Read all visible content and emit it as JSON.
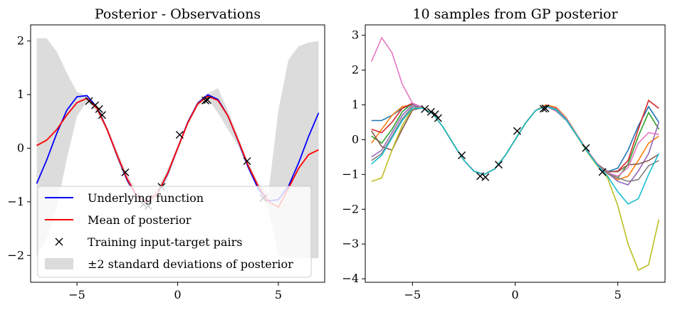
{
  "chart_data": [
    {
      "type": "line",
      "title": "Posterior - Observations",
      "xlim": [
        -7.3,
        7.3
      ],
      "ylim": [
        -2.5,
        2.3
      ],
      "xticks": [
        -5,
        0,
        5
      ],
      "yticks": [
        -2,
        -1,
        0,
        1,
        2
      ],
      "xtick_labels": [
        "−5",
        "0",
        "5"
      ],
      "ytick_labels": [
        "−2",
        "−1",
        "0",
        "1",
        "2"
      ],
      "grid": false,
      "legend_position": "lower-left",
      "x": [
        -7.0,
        -6.5,
        -6.0,
        -5.5,
        -5.0,
        -4.5,
        -4.0,
        -3.5,
        -3.0,
        -2.5,
        -2.0,
        -1.5,
        -1.0,
        -0.5,
        0.0,
        0.5,
        1.0,
        1.5,
        2.0,
        2.5,
        3.0,
        3.5,
        4.0,
        4.5,
        5.0,
        5.5,
        6.0,
        6.5,
        7.0
      ],
      "series": [
        {
          "name": "Underlying function",
          "color": "#0000ff",
          "kind": "line",
          "values": [
            -0.66,
            -0.22,
            0.28,
            0.71,
            0.96,
            0.98,
            0.76,
            0.35,
            -0.14,
            -0.6,
            -0.91,
            -0.997,
            -0.84,
            -0.48,
            0.0,
            0.48,
            0.84,
            0.997,
            0.91,
            0.6,
            0.14,
            -0.35,
            -0.76,
            -0.98,
            -0.96,
            -0.71,
            -0.28,
            0.22,
            0.66
          ]
        },
        {
          "name": "Mean of posterior",
          "color": "#ff0000",
          "kind": "line",
          "values": [
            0.05,
            0.15,
            0.35,
            0.62,
            0.85,
            0.93,
            0.74,
            0.35,
            -0.13,
            -0.58,
            -0.9,
            -1.0,
            -0.84,
            -0.47,
            0.0,
            0.47,
            0.83,
            0.97,
            0.89,
            0.6,
            0.15,
            -0.32,
            -0.71,
            -0.99,
            -1.1,
            -0.75,
            -0.38,
            -0.12,
            -0.03
          ]
        },
        {
          "name": "Training input-target pairs",
          "color": "#000000",
          "kind": "markers",
          "points": [
            [
              -4.4,
              0.88
            ],
            [
              -4.1,
              0.8
            ],
            [
              -3.9,
              0.73
            ],
            [
              -3.75,
              0.62
            ],
            [
              -2.6,
              -0.45
            ],
            [
              -1.7,
              -1.05
            ],
            [
              -1.45,
              -1.08
            ],
            [
              -0.8,
              -0.72
            ],
            [
              0.1,
              0.25
            ],
            [
              1.38,
              0.89
            ],
            [
              1.48,
              0.9
            ],
            [
              3.45,
              -0.24
            ],
            [
              4.25,
              -0.93
            ]
          ]
        },
        {
          "name": "±2 standard deviations of posterior",
          "color": "#dcdcdc",
          "kind": "band",
          "upper": [
            2.05,
            2.05,
            1.8,
            1.4,
            1.05,
            0.98,
            0.8,
            0.4,
            -0.05,
            -0.5,
            -0.82,
            -0.92,
            -0.76,
            -0.38,
            0.05,
            0.52,
            0.88,
            1.02,
            1.12,
            0.7,
            0.22,
            -0.25,
            -0.65,
            -0.85,
            0.7,
            1.65,
            1.9,
            1.97,
            2.0
          ],
          "lower": [
            -2.0,
            -1.7,
            -1.1,
            -0.2,
            0.6,
            0.88,
            0.68,
            0.3,
            -0.21,
            -0.66,
            -0.98,
            -1.08,
            -0.92,
            -0.56,
            -0.05,
            0.42,
            0.78,
            0.92,
            0.66,
            0.35,
            0.05,
            -0.4,
            -0.77,
            -1.13,
            -2.0,
            -2.05,
            -2.05,
            -2.05,
            -2.05
          ]
        }
      ]
    },
    {
      "type": "line",
      "title": "10 samples from GP posterior",
      "xlim": [
        -7.3,
        7.3
      ],
      "ylim": [
        -4.1,
        3.3
      ],
      "xticks": [
        -5,
        0,
        5
      ],
      "yticks": [
        -4,
        -3,
        -2,
        -1,
        0,
        1,
        2,
        3
      ],
      "xtick_labels": [
        "−5",
        "0",
        "5"
      ],
      "ytick_labels": [
        "−4",
        "−3",
        "−2",
        "−1",
        "0",
        "1",
        "2",
        "3"
      ],
      "grid": false,
      "x": [
        -7.0,
        -6.5,
        -6.0,
        -5.5,
        -5.0,
        -4.5,
        -4.0,
        -3.5,
        -3.0,
        -2.5,
        -2.0,
        -1.5,
        -1.0,
        -0.5,
        0.0,
        0.5,
        1.0,
        1.5,
        2.0,
        2.5,
        3.0,
        3.5,
        4.0,
        4.5,
        5.0,
        5.5,
        6.0,
        6.5,
        7.0
      ],
      "observations": [
        [
          -4.4,
          0.88
        ],
        [
          -4.1,
          0.8
        ],
        [
          -3.9,
          0.73
        ],
        [
          -3.75,
          0.62
        ],
        [
          -2.6,
          -0.45
        ],
        [
          -1.7,
          -1.05
        ],
        [
          -1.45,
          -1.08
        ],
        [
          -0.8,
          -0.72
        ],
        [
          0.1,
          0.25
        ],
        [
          1.38,
          0.89
        ],
        [
          1.48,
          0.9
        ],
        [
          3.45,
          -0.24
        ],
        [
          4.25,
          -0.93
        ]
      ],
      "series": [
        {
          "color": "#1f77b4",
          "values": [
            0.55,
            0.55,
            0.7,
            0.9,
            1.02,
            0.92,
            0.74,
            0.35,
            -0.13,
            -0.59,
            -0.91,
            -1.0,
            -0.84,
            -0.47,
            0.0,
            0.47,
            0.84,
            0.98,
            0.89,
            0.58,
            0.12,
            -0.3,
            -0.7,
            -0.92,
            -0.82,
            -0.3,
            0.4,
            0.95,
            0.5
          ]
        },
        {
          "color": "#ff7f0e",
          "values": [
            -0.1,
            0.3,
            0.7,
            0.95,
            1.0,
            0.91,
            0.74,
            0.35,
            -0.13,
            -0.59,
            -0.91,
            -1.0,
            -0.84,
            -0.47,
            0.0,
            0.47,
            0.84,
            1.0,
            0.93,
            0.62,
            0.15,
            -0.32,
            -0.72,
            -0.98,
            -1.15,
            -1.05,
            -0.6,
            -0.1,
            0.1
          ]
        },
        {
          "color": "#2ca02c",
          "values": [
            0.1,
            -0.1,
            0.3,
            0.8,
            1.05,
            0.92,
            0.74,
            0.35,
            -0.13,
            -0.59,
            -0.91,
            -1.0,
            -0.84,
            -0.47,
            0.0,
            0.47,
            0.84,
            0.97,
            0.88,
            0.58,
            0.14,
            -0.33,
            -0.72,
            -0.95,
            -1.1,
            -0.7,
            0.1,
            0.78,
            0.3
          ]
        },
        {
          "color": "#d62728",
          "values": [
            0.3,
            0.2,
            0.5,
            0.9,
            1.05,
            0.92,
            0.74,
            0.35,
            -0.13,
            -0.59,
            -0.91,
            -1.0,
            -0.84,
            -0.47,
            0.0,
            0.47,
            0.84,
            0.98,
            0.9,
            0.6,
            0.13,
            -0.31,
            -0.71,
            -0.93,
            -0.9,
            -0.6,
            0.3,
            1.13,
            0.9
          ]
        },
        {
          "color": "#9467bd",
          "values": [
            -0.5,
            -0.3,
            0.2,
            0.7,
            1.0,
            0.91,
            0.74,
            0.35,
            -0.13,
            -0.59,
            -0.91,
            -1.0,
            -0.84,
            -0.47,
            0.0,
            0.47,
            0.84,
            0.96,
            0.82,
            0.55,
            0.12,
            -0.32,
            -0.71,
            -0.95,
            -1.2,
            -1.3,
            -0.9,
            -0.4,
            0.5
          ]
        },
        {
          "color": "#8c564b",
          "values": [
            0.25,
            -0.2,
            -0.3,
            0.3,
            0.85,
            0.92,
            0.74,
            0.35,
            -0.13,
            -0.59,
            -0.91,
            -1.0,
            -0.84,
            -0.47,
            0.0,
            0.47,
            0.84,
            0.97,
            0.9,
            0.6,
            0.14,
            -0.3,
            -0.7,
            -0.92,
            -0.92,
            -0.72,
            -0.7,
            -0.6,
            -0.42
          ]
        },
        {
          "color": "#e377c2",
          "values": [
            2.25,
            2.93,
            2.5,
            1.6,
            1.05,
            0.92,
            0.74,
            0.35,
            -0.13,
            -0.59,
            -0.91,
            -1.0,
            -0.84,
            -0.47,
            0.0,
            0.47,
            0.84,
            0.97,
            0.9,
            0.6,
            0.14,
            -0.31,
            -0.71,
            -0.95,
            -1.05,
            -0.8,
            -0.1,
            0.2,
            0.15
          ]
        },
        {
          "color": "#7f7f7f",
          "values": [
            -0.6,
            -0.4,
            0.1,
            0.6,
            0.95,
            0.91,
            0.74,
            0.35,
            -0.13,
            -0.59,
            -0.91,
            -1.0,
            -0.84,
            -0.47,
            0.0,
            0.47,
            0.84,
            0.97,
            0.88,
            0.58,
            0.13,
            -0.32,
            -0.72,
            -0.97,
            -1.1,
            -1.2,
            -1.15,
            -0.75,
            -0.6
          ]
        },
        {
          "color": "#bcbd22",
          "values": [
            -1.2,
            -1.1,
            -0.3,
            0.4,
            0.9,
            0.91,
            0.74,
            0.35,
            -0.13,
            -0.59,
            -0.91,
            -1.0,
            -0.84,
            -0.47,
            0.0,
            0.47,
            0.84,
            0.96,
            0.85,
            0.56,
            0.11,
            -0.35,
            -0.75,
            -1.1,
            -1.9,
            -3.0,
            -3.75,
            -3.6,
            -2.3
          ]
        },
        {
          "color": "#17becf",
          "values": [
            -0.7,
            -0.45,
            0.05,
            0.55,
            0.9,
            0.9,
            0.74,
            0.35,
            -0.13,
            -0.59,
            -0.91,
            -1.0,
            -0.84,
            -0.47,
            0.0,
            0.47,
            0.84,
            0.96,
            0.86,
            0.56,
            0.12,
            -0.33,
            -0.73,
            -1.05,
            -1.5,
            -1.85,
            -1.7,
            -1.0,
            -0.4
          ]
        }
      ]
    }
  ]
}
